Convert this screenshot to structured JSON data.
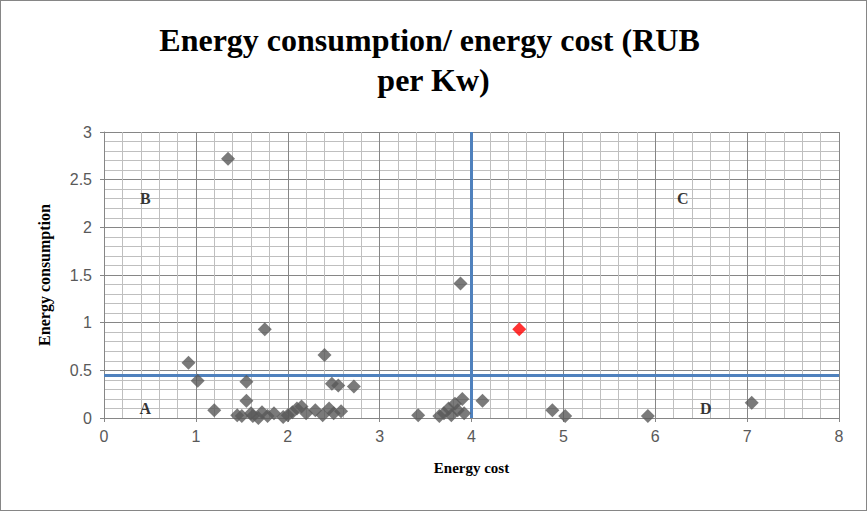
{
  "chart_data": {
    "type": "scatter",
    "title": "Energy consumption/ energy cost (RUB per Kw)",
    "x_label": "Energy cost",
    "y_label": "Energy consumption",
    "xlim": [
      0,
      8
    ],
    "xticks": [
      0,
      1,
      2,
      3,
      4,
      5,
      6,
      7,
      8
    ],
    "ylim": [
      0,
      3
    ],
    "yticks": [
      0,
      0.5,
      1,
      1.5,
      2,
      2.5,
      3
    ],
    "grid": true,
    "marker": "diamond",
    "series": [
      {
        "color": "#595959",
        "marker": "diamond",
        "x": [
          0.92,
          1.02,
          1.2,
          1.35,
          1.45,
          1.5,
          1.55,
          1.55,
          1.6,
          1.62,
          1.68,
          1.72,
          1.75,
          1.78,
          1.85,
          1.95,
          2.0,
          2.05,
          2.1,
          2.15,
          2.2,
          2.3,
          2.38,
          2.4,
          2.45,
          2.48,
          2.5,
          2.55,
          2.58,
          2.72,
          3.42,
          3.65,
          3.7,
          3.75,
          3.78,
          3.82,
          3.85,
          3.88,
          3.9,
          3.92,
          4.12,
          4.88,
          5.02,
          5.92,
          7.05
        ],
        "values": [
          0.58,
          0.39,
          0.08,
          2.72,
          0.03,
          0.02,
          0.38,
          0.18,
          0.05,
          0.02,
          0.0,
          0.06,
          0.93,
          0.02,
          0.05,
          0.01,
          0.03,
          0.06,
          0.1,
          0.12,
          0.05,
          0.08,
          0.03,
          0.66,
          0.1,
          0.36,
          0.05,
          0.34,
          0.07,
          0.33,
          0.03,
          0.02,
          0.05,
          0.1,
          0.03,
          0.15,
          0.08,
          1.41,
          0.2,
          0.05,
          0.18,
          0.08,
          0.02,
          0.02,
          0.16
        ]
      },
      {
        "color": "#ff0000",
        "marker": "diamond",
        "x": [
          4.52
        ],
        "values": [
          0.93
        ]
      }
    ],
    "reference_lines": {
      "x": [
        4
      ],
      "y": [
        0.45
      ],
      "color": "#4f81bd"
    },
    "annotations": [
      {
        "text": "A",
        "x": 0.45,
        "y": 0.1
      },
      {
        "text": "B",
        "x": 0.45,
        "y": 2.3
      },
      {
        "text": "C",
        "x": 6.3,
        "y": 2.3
      },
      {
        "text": "D",
        "x": 6.55,
        "y": 0.1
      }
    ]
  }
}
